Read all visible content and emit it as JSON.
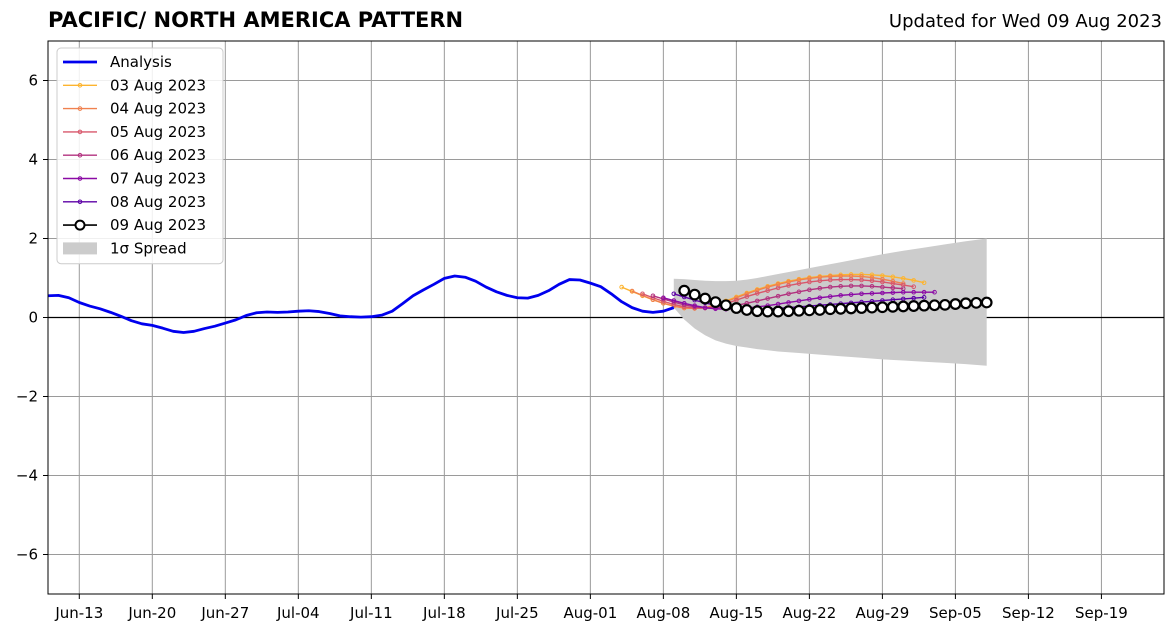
{
  "chart_data": {
    "type": "line",
    "title": "PACIFIC/ NORTH AMERICA PATTERN",
    "subtitle": "Updated for Wed 09 Aug 2023",
    "xlabel": "",
    "ylabel": "",
    "x_start": "Jun-09",
    "x_end": "Sep-24",
    "xlim_days": [
      0,
      107
    ],
    "ylim": [
      -7,
      7
    ],
    "x_ticks": [
      "Jun-13",
      "Jun-20",
      "Jun-27",
      "Jul-04",
      "Jul-11",
      "Jul-18",
      "Jul-25",
      "Aug-01",
      "Aug-08",
      "Aug-15",
      "Aug-22",
      "Aug-29",
      "Sep-05",
      "Sep-12",
      "Sep-19"
    ],
    "x_tick_days": [
      3,
      10,
      17,
      24,
      31,
      38,
      45,
      52,
      59,
      66,
      73,
      80,
      87,
      94,
      101
    ],
    "y_ticks": [
      -6,
      -4,
      -2,
      0,
      2,
      4,
      6
    ],
    "y_tick_labels": [
      "−6",
      "−4",
      "−2",
      "0",
      "2",
      "4",
      "6"
    ],
    "grid": true,
    "legend_position": "top-left",
    "legend": [
      {
        "label": "Analysis",
        "color": "#0000ee",
        "kind": "line"
      },
      {
        "label": "03 Aug 2023",
        "color": "#fdb42f",
        "kind": "marker-line"
      },
      {
        "label": "04 Aug 2023",
        "color": "#f0814f",
        "kind": "marker-line"
      },
      {
        "label": "05 Aug 2023",
        "color": "#d8576b",
        "kind": "marker-line"
      },
      {
        "label": "06 Aug 2023",
        "color": "#b2327f",
        "kind": "marker-line"
      },
      {
        "label": "07 Aug 2023",
        "color": "#8b0aa5",
        "kind": "marker-line"
      },
      {
        "label": "08 Aug 2023",
        "color": "#5c01a6",
        "kind": "marker-line"
      },
      {
        "label": "09 Aug 2023",
        "color": "#000000",
        "kind": "open-circle"
      },
      {
        "label": "1σ Spread",
        "color": "#cccccc",
        "kind": "patch"
      }
    ],
    "analysis": {
      "name": "Analysis",
      "color": "#0000ee",
      "points": [
        [
          0,
          0.55
        ],
        [
          1,
          0.56
        ],
        [
          2,
          0.5
        ],
        [
          3,
          0.38
        ],
        [
          4,
          0.29
        ],
        [
          5,
          0.22
        ],
        [
          6,
          0.13
        ],
        [
          7,
          0.03
        ],
        [
          8,
          -0.08
        ],
        [
          9,
          -0.16
        ],
        [
          10,
          -0.2
        ],
        [
          11,
          -0.27
        ],
        [
          12,
          -0.35
        ],
        [
          13,
          -0.38
        ],
        [
          14,
          -0.35
        ],
        [
          15,
          -0.28
        ],
        [
          16,
          -0.22
        ],
        [
          17,
          -0.14
        ],
        [
          18,
          -0.06
        ],
        [
          19,
          0.05
        ],
        [
          20,
          0.12
        ],
        [
          21,
          0.14
        ],
        [
          22,
          0.13
        ],
        [
          23,
          0.14
        ],
        [
          24,
          0.16
        ],
        [
          25,
          0.17
        ],
        [
          26,
          0.15
        ],
        [
          27,
          0.1
        ],
        [
          28,
          0.04
        ],
        [
          29,
          0.02
        ],
        [
          30,
          0.01
        ],
        [
          31,
          0.02
        ],
        [
          32,
          0.06
        ],
        [
          33,
          0.16
        ],
        [
          34,
          0.35
        ],
        [
          35,
          0.55
        ],
        [
          36,
          0.7
        ],
        [
          37,
          0.84
        ],
        [
          38,
          0.99
        ],
        [
          39,
          1.05
        ],
        [
          40,
          1.02
        ],
        [
          41,
          0.92
        ],
        [
          42,
          0.77
        ],
        [
          43,
          0.65
        ],
        [
          44,
          0.56
        ],
        [
          45,
          0.5
        ],
        [
          46,
          0.49
        ],
        [
          47,
          0.56
        ],
        [
          48,
          0.68
        ],
        [
          49,
          0.84
        ],
        [
          50,
          0.96
        ],
        [
          51,
          0.95
        ],
        [
          52,
          0.87
        ],
        [
          53,
          0.78
        ],
        [
          54,
          0.6
        ],
        [
          55,
          0.4
        ],
        [
          56,
          0.25
        ],
        [
          57,
          0.16
        ],
        [
          58,
          0.13
        ],
        [
          59,
          0.16
        ],
        [
          60,
          0.25
        ]
      ]
    },
    "spread": {
      "name": "1σ Spread",
      "color": "#cccccc",
      "x": [
        60,
        61,
        62,
        63,
        64,
        65,
        66,
        67,
        68,
        69,
        70,
        72,
        74,
        76,
        78,
        80,
        82,
        84,
        86,
        88,
        90
      ],
      "upper": [
        0.98,
        0.97,
        0.95,
        0.93,
        0.92,
        0.92,
        0.93,
        0.96,
        1.0,
        1.05,
        1.1,
        1.2,
        1.3,
        1.4,
        1.5,
        1.6,
        1.69,
        1.77,
        1.85,
        1.93,
        2.0
      ],
      "lower": [
        0.25,
        -0.05,
        -0.28,
        -0.45,
        -0.58,
        -0.66,
        -0.72,
        -0.76,
        -0.8,
        -0.83,
        -0.86,
        -0.9,
        -0.94,
        -0.98,
        -1.02,
        -1.06,
        -1.09,
        -1.12,
        -1.15,
        -1.18,
        -1.22
      ]
    },
    "series": [
      {
        "name": "03 Aug 2023",
        "color": "#fdb42f",
        "x_start": 55,
        "values": [
          0.77,
          0.66,
          0.55,
          0.45,
          0.36,
          0.29,
          0.24,
          0.23,
          0.25,
          0.32,
          0.42,
          0.52,
          0.62,
          0.71,
          0.79,
          0.86,
          0.92,
          0.97,
          1.01,
          1.04,
          1.06,
          1.08,
          1.09,
          1.09,
          1.08,
          1.06,
          1.03,
          0.99,
          0.94,
          0.88
        ]
      },
      {
        "name": "04 Aug 2023",
        "color": "#f0814f",
        "x_start": 56,
        "values": [
          0.67,
          0.56,
          0.45,
          0.36,
          0.29,
          0.24,
          0.23,
          0.25,
          0.31,
          0.4,
          0.5,
          0.6,
          0.69,
          0.77,
          0.84,
          0.9,
          0.95,
          0.99,
          1.02,
          1.04,
          1.05,
          1.05,
          1.04,
          1.01,
          0.97,
          0.92,
          0.86
        ]
      },
      {
        "name": "05 Aug 2023",
        "color": "#d8576b",
        "x_start": 57,
        "values": [
          0.6,
          0.5,
          0.41,
          0.33,
          0.27,
          0.24,
          0.24,
          0.28,
          0.35,
          0.44,
          0.53,
          0.61,
          0.68,
          0.75,
          0.81,
          0.86,
          0.9,
          0.93,
          0.95,
          0.96,
          0.96,
          0.95,
          0.93,
          0.9,
          0.86,
          0.82,
          0.78
        ]
      },
      {
        "name": "06 Aug 2023",
        "color": "#b2327f",
        "x_start": 58,
        "values": [
          0.55,
          0.47,
          0.39,
          0.32,
          0.27,
          0.24,
          0.24,
          0.27,
          0.31,
          0.36,
          0.42,
          0.48,
          0.54,
          0.6,
          0.65,
          0.7,
          0.74,
          0.77,
          0.79,
          0.8,
          0.8,
          0.79,
          0.77,
          0.75,
          0.73
        ]
      },
      {
        "name": "07 Aug 2023",
        "color": "#8b0aa5",
        "x_start": 59,
        "values": [
          0.5,
          0.43,
          0.36,
          0.3,
          0.25,
          0.22,
          0.21,
          0.22,
          0.24,
          0.27,
          0.3,
          0.34,
          0.38,
          0.42,
          0.46,
          0.5,
          0.53,
          0.56,
          0.58,
          0.6,
          0.61,
          0.62,
          0.63,
          0.64,
          0.64,
          0.64,
          0.64
        ]
      },
      {
        "name": "08 Aug 2023",
        "color": "#5c01a6",
        "x_start": 60,
        "values": [
          0.6,
          0.52,
          0.44,
          0.37,
          0.31,
          0.26,
          0.22,
          0.2,
          0.2,
          0.21,
          0.23,
          0.25,
          0.27,
          0.29,
          0.31,
          0.33,
          0.35,
          0.37,
          0.39,
          0.41,
          0.43,
          0.45,
          0.47,
          0.49,
          0.51
        ]
      },
      {
        "name": "09 Aug 2023",
        "color": "#000000",
        "x_start": 61,
        "open_circle": true,
        "values": [
          0.68,
          0.58,
          0.48,
          0.39,
          0.31,
          0.24,
          0.19,
          0.16,
          0.15,
          0.15,
          0.16,
          0.17,
          0.18,
          0.19,
          0.21,
          0.22,
          0.23,
          0.24,
          0.25,
          0.26,
          0.27,
          0.28,
          0.29,
          0.3,
          0.31,
          0.32,
          0.34,
          0.36,
          0.37,
          0.38
        ]
      }
    ]
  }
}
